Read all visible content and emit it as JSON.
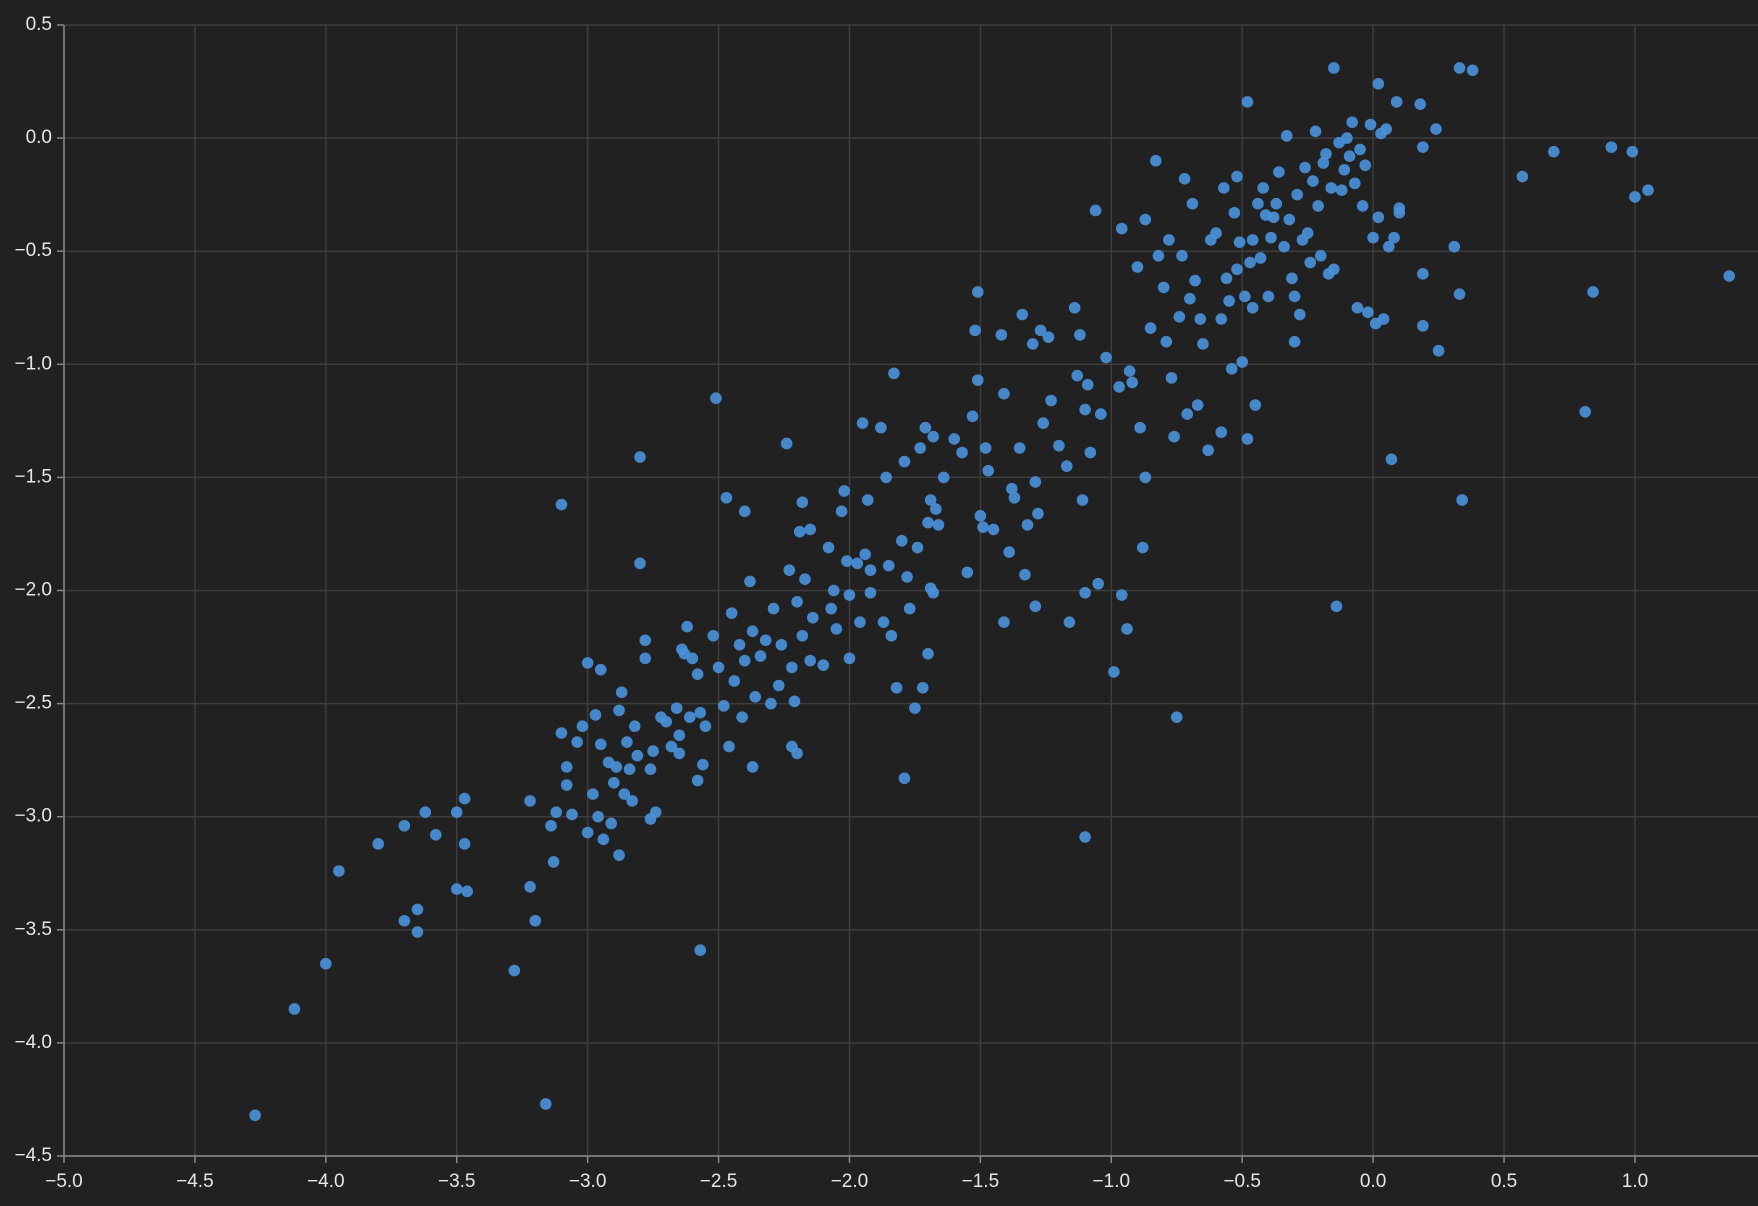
{
  "chart_data": {
    "type": "scatter",
    "color": "#4a90d9",
    "grid": true,
    "xlim": [
      -5.0,
      1.47
    ],
    "ylim": [
      -4.5,
      0.5
    ],
    "xticks": [
      {
        "value": -5.0,
        "label": "−5.0"
      },
      {
        "value": -4.5,
        "label": "−4.5"
      },
      {
        "value": -4.0,
        "label": "−4.0"
      },
      {
        "value": -3.5,
        "label": "−3.5"
      },
      {
        "value": -3.0,
        "label": "−3.0"
      },
      {
        "value": -2.5,
        "label": "−2.5"
      },
      {
        "value": -2.0,
        "label": "−2.0"
      },
      {
        "value": -1.5,
        "label": "−1.5"
      },
      {
        "value": -1.0,
        "label": "−1.0"
      },
      {
        "value": -0.5,
        "label": "−0.5"
      },
      {
        "value": 0.0,
        "label": "0.0"
      },
      0.5,
      {
        "value": 1.0,
        "label": "1.0"
      }
    ],
    "yticks": [
      0.5,
      {
        "value": 0.0,
        "label": "0.0"
      },
      {
        "value": -0.5,
        "label": "−0.5"
      },
      {
        "value": -1.0,
        "label": "−1.0"
      },
      {
        "value": -1.5,
        "label": "−1.5"
      },
      {
        "value": -2.0,
        "label": "−2.0"
      },
      {
        "value": -2.5,
        "label": "−2.5"
      },
      {
        "value": -3.0,
        "label": "−3.0"
      },
      {
        "value": -3.5,
        "label": "−3.5"
      },
      {
        "value": -4.0,
        "label": "−4.0"
      },
      {
        "value": -4.5,
        "label": "−4.5"
      }
    ],
    "x": [
      -4.27,
      -4.12,
      -4.0,
      -3.95,
      -3.8,
      -3.7,
      -3.7,
      -3.65,
      -3.65,
      -3.62,
      -3.58,
      -3.5,
      -3.5,
      -3.47,
      -3.47,
      -3.46,
      -3.28,
      -3.22,
      -3.22,
      -3.2,
      -3.16,
      -3.14,
      -3.13,
      -3.12,
      -3.1,
      -3.1,
      -3.08,
      -3.08,
      -3.06,
      -3.04,
      -3.02,
      -3.0,
      -3.0,
      -2.98,
      -2.97,
      -2.96,
      -2.95,
      -2.95,
      -2.94,
      -2.92,
      -2.91,
      -2.9,
      -2.89,
      -2.88,
      -2.88,
      -2.87,
      -2.86,
      -2.85,
      -2.84,
      -2.83,
      -2.82,
      -2.81,
      -2.8,
      -2.8,
      -2.78,
      -2.78,
      -2.76,
      -2.76,
      -2.75,
      -2.74,
      -2.72,
      -2.7,
      -2.68,
      -2.66,
      -2.65,
      -2.65,
      -2.64,
      -2.63,
      -2.62,
      -2.61,
      -2.6,
      -2.58,
      -2.58,
      -2.57,
      -2.57,
      -2.56,
      -2.55,
      -2.52,
      -2.51,
      -2.5,
      -2.48,
      -2.47,
      -2.46,
      -2.45,
      -2.44,
      -2.42,
      -2.41,
      -2.4,
      -2.4,
      -2.38,
      -2.37,
      -2.37,
      -2.36,
      -2.34,
      -2.32,
      -2.3,
      -2.29,
      -2.27,
      -2.26,
      -2.24,
      -2.23,
      -2.22,
      -2.22,
      -2.21,
      -2.2,
      -2.2,
      -2.19,
      -2.18,
      -2.18,
      -2.17,
      -2.15,
      -2.15,
      -2.14,
      -2.1,
      -2.08,
      -2.07,
      -2.06,
      -2.05,
      -2.03,
      -2.02,
      -2.01,
      -2.0,
      -2.0,
      -1.97,
      -1.96,
      -1.95,
      -1.94,
      -1.93,
      -1.92,
      -1.92,
      -1.88,
      -1.87,
      -1.86,
      -1.85,
      -1.84,
      -1.83,
      -1.82,
      -1.8,
      -1.79,
      -1.79,
      -1.78,
      -1.77,
      -1.75,
      -1.74,
      -1.73,
      -1.72,
      -1.71,
      -1.7,
      -1.7,
      -1.69,
      -1.69,
      -1.68,
      -1.68,
      -1.67,
      -1.66,
      -1.64,
      -1.6,
      -1.57,
      -1.55,
      -1.53,
      -1.52,
      -1.51,
      -1.51,
      -1.5,
      -1.49,
      -1.48,
      -1.47,
      -1.45,
      -1.42,
      -1.41,
      -1.41,
      -1.39,
      -1.38,
      -1.37,
      -1.35,
      -1.34,
      -1.33,
      -1.32,
      -1.3,
      -1.29,
      -1.29,
      -1.28,
      -1.27,
      -1.26,
      -1.24,
      -1.23,
      -1.2,
      -1.17,
      -1.16,
      -1.14,
      -1.13,
      -1.12,
      -1.11,
      -1.1,
      -1.1,
      -1.1,
      -1.09,
      -1.08,
      -1.06,
      -1.05,
      -1.04,
      -1.02,
      -0.99,
      -0.97,
      -0.96,
      -0.96,
      -0.94,
      -0.93,
      -0.92,
      -0.9,
      -0.89,
      -0.88,
      -0.87,
      -0.87,
      -0.85,
      -0.83,
      -0.82,
      -0.8,
      -0.79,
      -0.78,
      -0.77,
      -0.76,
      -0.75,
      -0.74,
      -0.73,
      -0.72,
      -0.71,
      -0.7,
      -0.69,
      -0.68,
      -0.67,
      -0.66,
      -0.65,
      -0.63,
      -0.62,
      -0.6,
      -0.58,
      -0.58,
      -0.57,
      -0.56,
      -0.55,
      -0.54,
      -0.53,
      -0.52,
      -0.52,
      -0.51,
      -0.5,
      -0.49,
      -0.48,
      -0.48,
      -0.47,
      -0.46,
      -0.46,
      -0.45,
      -0.44,
      -0.43,
      -0.42,
      -0.41,
      -0.4,
      -0.39,
      -0.38,
      -0.37,
      -0.36,
      -0.34,
      -0.33,
      -0.32,
      -0.31,
      -0.3,
      -0.3,
      -0.29,
      -0.28,
      -0.27,
      -0.26,
      -0.25,
      -0.24,
      -0.23,
      -0.22,
      -0.21,
      -0.2,
      -0.19,
      -0.18,
      -0.17,
      -0.16,
      -0.15,
      -0.15,
      -0.14,
      -0.13,
      -0.12,
      -0.11,
      -0.1,
      -0.09,
      -0.08,
      -0.07,
      -0.06,
      -0.05,
      -0.04,
      -0.03,
      -0.02,
      -0.01,
      0.0,
      0.01,
      0.02,
      0.02,
      0.03,
      0.04,
      0.05,
      0.06,
      0.07,
      0.08,
      0.09,
      0.1,
      0.1,
      0.18,
      0.19,
      0.19,
      0.19,
      0.24,
      0.25,
      0.31,
      0.33,
      0.33,
      0.34,
      0.38,
      0.57,
      0.69,
      0.81,
      0.84,
      0.91,
      0.99,
      1.0,
      1.05,
      1.36
    ],
    "values": [
      -4.32,
      -3.85,
      -3.65,
      -3.24,
      -3.12,
      -3.04,
      -3.46,
      -3.41,
      -3.51,
      -2.98,
      -3.08,
      -2.98,
      -3.32,
      -2.92,
      -3.12,
      -3.33,
      -3.68,
      -2.93,
      -3.31,
      -3.46,
      -4.27,
      -3.04,
      -3.2,
      -2.98,
      -1.62,
      -2.63,
      -2.78,
      -2.86,
      -2.99,
      -2.67,
      -2.6,
      -2.32,
      -3.07,
      -2.9,
      -2.55,
      -3.0,
      -2.35,
      -2.68,
      -3.1,
      -2.76,
      -3.03,
      -2.85,
      -2.78,
      -3.17,
      -2.53,
      -2.45,
      -2.9,
      -2.67,
      -2.79,
      -2.93,
      -2.6,
      -2.73,
      -1.41,
      -1.88,
      -2.22,
      -2.3,
      -2.79,
      -3.01,
      -2.71,
      -2.98,
      -2.56,
      -2.58,
      -2.69,
      -2.52,
      -2.64,
      -2.72,
      -2.26,
      -2.28,
      -2.16,
      -2.56,
      -2.3,
      -2.84,
      -2.37,
      -2.54,
      -3.59,
      -2.77,
      -2.6,
      -2.2,
      -1.15,
      -2.34,
      -2.51,
      -1.59,
      -2.69,
      -2.1,
      -2.4,
      -2.24,
      -2.56,
      -1.65,
      -2.31,
      -1.96,
      -2.78,
      -2.18,
      -2.47,
      -2.29,
      -2.22,
      -2.5,
      -2.08,
      -2.42,
      -2.24,
      -1.35,
      -1.91,
      -2.34,
      -2.69,
      -2.49,
      -2.72,
      -2.05,
      -1.74,
      -2.2,
      -1.61,
      -1.95,
      -2.31,
      -1.73,
      -2.12,
      -2.33,
      -1.81,
      -2.08,
      -2.0,
      -2.17,
      -1.65,
      -1.56,
      -1.87,
      -2.3,
      -2.02,
      -1.88,
      -2.14,
      -1.26,
      -1.84,
      -1.6,
      -1.91,
      -2.01,
      -1.28,
      -2.14,
      -1.5,
      -1.89,
      -2.2,
      -1.04,
      -2.43,
      -1.78,
      -1.43,
      -2.83,
      -1.94,
      -2.08,
      -2.52,
      -1.81,
      -1.37,
      -2.43,
      -1.28,
      -1.7,
      -2.28,
      -1.6,
      -1.99,
      -1.32,
      -2.01,
      -1.64,
      -1.71,
      -1.5,
      -1.33,
      -1.39,
      -1.92,
      -1.23,
      -0.85,
      -0.68,
      -1.07,
      -1.67,
      -1.72,
      -1.37,
      -1.47,
      -1.73,
      -0.87,
      -1.13,
      -2.14,
      -1.83,
      -1.55,
      -1.59,
      -1.37,
      -0.78,
      -1.93,
      -1.71,
      -0.91,
      -2.07,
      -1.52,
      -1.66,
      -0.85,
      -1.26,
      -0.88,
      -1.16,
      -1.36,
      -1.45,
      -2.14,
      -0.75,
      -1.05,
      -0.87,
      -1.6,
      -2.01,
      -3.09,
      -1.2,
      -1.09,
      -1.39,
      -0.32,
      -1.97,
      -1.22,
      -0.97,
      -2.36,
      -1.1,
      -2.02,
      -0.4,
      -2.17,
      -1.03,
      -1.08,
      -0.57,
      -1.28,
      -1.81,
      -1.5,
      -0.36,
      -0.84,
      -0.1,
      -0.52,
      -0.66,
      -0.9,
      -0.45,
      -1.06,
      -1.32,
      -2.56,
      -0.79,
      -0.52,
      -0.18,
      -1.22,
      -0.71,
      -0.29,
      -0.63,
      -1.18,
      -0.8,
      -0.91,
      -1.38,
      -0.45,
      -0.42,
      -0.8,
      -1.3,
      -0.22,
      -0.62,
      -0.72,
      -1.02,
      -0.33,
      -0.17,
      -0.58,
      -0.46,
      -0.99,
      -0.7,
      0.16,
      -1.33,
      -0.55,
      -0.45,
      -0.75,
      -1.18,
      -0.29,
      -0.53,
      -0.22,
      -0.34,
      -0.7,
      -0.44,
      -0.35,
      -0.29,
      -0.15,
      -0.48,
      0.01,
      -0.36,
      -0.62,
      -0.9,
      -0.7,
      -0.25,
      -0.78,
      -0.45,
      -0.13,
      -0.42,
      -0.55,
      -0.19,
      0.03,
      -0.3,
      -0.52,
      -0.11,
      -0.07,
      -0.6,
      -0.22,
      0.31,
      -0.58,
      -2.07,
      -0.02,
      -0.23,
      -0.14,
      0.0,
      -0.08,
      0.07,
      -0.2,
      -0.75,
      -0.05,
      -0.3,
      -0.12,
      -0.77,
      0.06,
      -0.44,
      -0.82,
      0.24,
      -0.35,
      0.02,
      -0.8,
      0.04,
      -0.48,
      -1.42,
      -0.44,
      0.16,
      -0.33,
      -0.31,
      0.15,
      -0.04,
      -0.6,
      -0.83,
      0.04,
      -0.94,
      -0.48,
      -0.69,
      0.31,
      -1.6,
      0.3,
      -0.17,
      -0.06,
      -1.21,
      -0.68,
      -0.04,
      -0.06,
      -0.26,
      -0.23,
      -0.61
    ]
  }
}
